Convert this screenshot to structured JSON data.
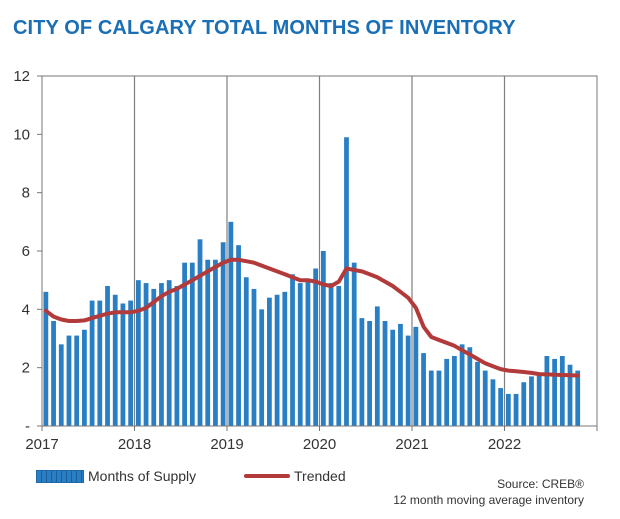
{
  "title": "CITY OF CALGARY TOTAL MONTHS OF INVENTORY",
  "legend": {
    "bars": "Months of Supply",
    "line": "Trended"
  },
  "source": {
    "line1": "Source: CREB®",
    "line2": "12 month moving average inventory"
  },
  "colors": {
    "title": "#1a6fb5",
    "bars": "#2a7fc4",
    "line": "#b33a3a",
    "grid": "#808080"
  },
  "chart_data": {
    "type": "bar",
    "x_tick_labels": [
      "2017",
      "2018",
      "2019",
      "2020",
      "2021",
      "2022"
    ],
    "y_tick_labels": [
      "-",
      "2",
      "4",
      "6",
      "8",
      "10",
      "12"
    ],
    "ylim": [
      0,
      12
    ],
    "start": "2017-01",
    "series": [
      {
        "name": "Months of Supply",
        "type": "bar",
        "values": [
          4.6,
          3.6,
          2.8,
          3.1,
          3.1,
          3.3,
          4.3,
          4.3,
          4.8,
          4.5,
          4.2,
          4.3,
          5.0,
          4.9,
          4.7,
          4.9,
          5.0,
          4.8,
          5.6,
          5.6,
          6.4,
          5.7,
          5.7,
          6.3,
          7.0,
          6.2,
          5.1,
          4.7,
          4.0,
          4.4,
          4.5,
          4.6,
          5.2,
          4.9,
          5.0,
          5.4,
          6.0,
          4.9,
          4.8,
          9.9,
          5.6,
          3.7,
          3.6,
          4.1,
          3.6,
          3.3,
          3.5,
          3.1,
          3.4,
          2.5,
          1.9,
          1.9,
          2.3,
          2.4,
          2.8,
          2.7,
          2.2,
          1.9,
          1.6,
          1.3,
          1.1,
          1.1,
          1.5,
          1.7,
          1.8,
          2.4,
          2.3,
          2.4,
          2.1,
          1.9
        ]
      },
      {
        "name": "Trended",
        "type": "line",
        "values": [
          3.95,
          3.75,
          3.65,
          3.6,
          3.6,
          3.62,
          3.7,
          3.78,
          3.85,
          3.9,
          3.9,
          3.9,
          3.95,
          4.05,
          4.25,
          4.45,
          4.6,
          4.7,
          4.85,
          5.0,
          5.15,
          5.3,
          5.45,
          5.6,
          5.7,
          5.7,
          5.65,
          5.6,
          5.5,
          5.4,
          5.3,
          5.2,
          5.1,
          5.0,
          5.0,
          4.95,
          4.85,
          4.8,
          4.95,
          5.4,
          5.35,
          5.3,
          5.2,
          5.1,
          4.95,
          4.8,
          4.6,
          4.4,
          4.05,
          3.4,
          3.05,
          2.95,
          2.85,
          2.75,
          2.6,
          2.45,
          2.3,
          2.15,
          2.05,
          1.95,
          1.9,
          1.88,
          1.85,
          1.82,
          1.78,
          1.77,
          1.76,
          1.75,
          1.74,
          1.73
        ]
      }
    ]
  }
}
